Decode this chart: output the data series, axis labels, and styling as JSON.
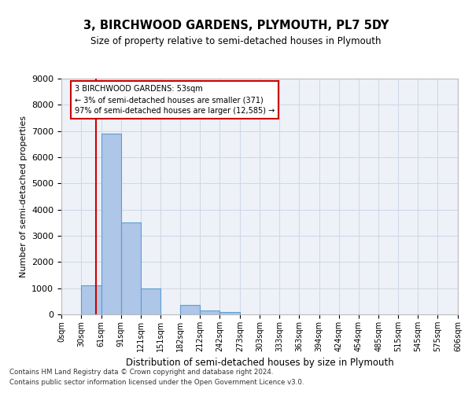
{
  "title": "3, BIRCHWOOD GARDENS, PLYMOUTH, PL7 5DY",
  "subtitle": "Size of property relative to semi-detached houses in Plymouth",
  "xlabel": "Distribution of semi-detached houses by size in Plymouth",
  "ylabel": "Number of semi-detached properties",
  "property_size": 53,
  "property_label": "3 BIRCHWOOD GARDENS: 53sqm",
  "pct_smaller": 3,
  "n_smaller": 371,
  "pct_larger": 97,
  "n_larger": 12585,
  "bin_edges": [
    0,
    30,
    61,
    91,
    121,
    151,
    182,
    212,
    242,
    273,
    303,
    333,
    363,
    394,
    424,
    454,
    485,
    515,
    545,
    575,
    606
  ],
  "bin_counts": [
    0,
    1100,
    6900,
    3500,
    1000,
    0,
    350,
    150,
    100,
    0,
    0,
    0,
    0,
    0,
    0,
    0,
    0,
    0,
    0,
    0
  ],
  "bar_color": "#aec6e8",
  "bar_edge_color": "#5a9fd4",
  "red_line_color": "#cc0000",
  "box_color": "#cc0000",
  "grid_color": "#d0d8e8",
  "background_color": "#eef2f8",
  "footer_line1": "Contains HM Land Registry data © Crown copyright and database right 2024.",
  "footer_line2": "Contains public sector information licensed under the Open Government Licence v3.0.",
  "ylim": [
    0,
    9000
  ],
  "yticks": [
    0,
    1000,
    2000,
    3000,
    4000,
    5000,
    6000,
    7000,
    8000,
    9000
  ]
}
